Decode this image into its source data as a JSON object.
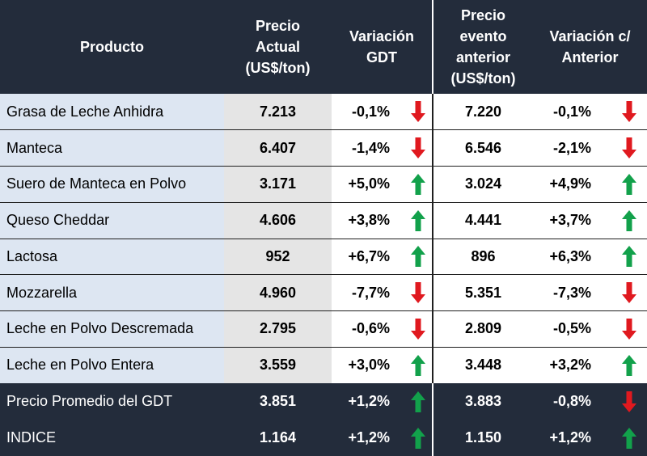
{
  "colors": {
    "header_bg": "#232c3b",
    "product_bg": "#dde6f2",
    "price_bg": "#e5e5e5",
    "up": "#12a14b",
    "down": "#e0191f"
  },
  "headers": {
    "producto": "Producto",
    "precio_actual": [
      "Precio",
      "Actual",
      "(US$/ton)"
    ],
    "variacion_gdt": [
      "Variación",
      "GDT"
    ],
    "precio_anterior": [
      "Precio",
      "evento",
      "anterior",
      "(US$/ton)"
    ],
    "variacion_anterior": [
      "Variación c/",
      "Anterior"
    ]
  },
  "rows": [
    {
      "producto": "Grasa de Leche Anhidra",
      "precio_actual": "7.213",
      "var_gdt": "-0,1%",
      "var_gdt_dir": "down",
      "precio_anterior": "7.220",
      "var_ant": "-0,1%",
      "var_ant_dir": "down"
    },
    {
      "producto": "Manteca",
      "precio_actual": "6.407",
      "var_gdt": "-1,4%",
      "var_gdt_dir": "down",
      "precio_anterior": "6.546",
      "var_ant": "-2,1%",
      "var_ant_dir": "down"
    },
    {
      "producto": "Suero de Manteca en Polvo",
      "precio_actual": "3.171",
      "var_gdt": "+5,0%",
      "var_gdt_dir": "up",
      "precio_anterior": "3.024",
      "var_ant": "+4,9%",
      "var_ant_dir": "up"
    },
    {
      "producto": "Queso Cheddar",
      "precio_actual": "4.606",
      "var_gdt": "+3,8%",
      "var_gdt_dir": "up",
      "precio_anterior": "4.441",
      "var_ant": "+3,7%",
      "var_ant_dir": "up"
    },
    {
      "producto": "Lactosa",
      "precio_actual": "952",
      "var_gdt": "+6,7%",
      "var_gdt_dir": "up",
      "precio_anterior": "896",
      "var_ant": "+6,3%",
      "var_ant_dir": "up"
    },
    {
      "producto": "Mozzarella",
      "precio_actual": "4.960",
      "var_gdt": "-7,7%",
      "var_gdt_dir": "down",
      "precio_anterior": "5.351",
      "var_ant": "-7,3%",
      "var_ant_dir": "down"
    },
    {
      "producto": "Leche en Polvo Descremada",
      "precio_actual": "2.795",
      "var_gdt": "-0,6%",
      "var_gdt_dir": "down",
      "precio_anterior": "2.809",
      "var_ant": "-0,5%",
      "var_ant_dir": "down"
    },
    {
      "producto": "Leche en Polvo Entera",
      "precio_actual": "3.559",
      "var_gdt": "+3,0%",
      "var_gdt_dir": "up",
      "precio_anterior": "3.448",
      "var_ant": "+3,2%",
      "var_ant_dir": "up"
    }
  ],
  "footer": [
    {
      "producto": "Precio Promedio del GDT",
      "precio_actual": "3.851",
      "var_gdt": "+1,2%",
      "var_gdt_dir": "up",
      "precio_anterior": "3.883",
      "var_ant": "-0,8%",
      "var_ant_dir": "down"
    },
    {
      "producto": "INDICE",
      "precio_actual": "1.164",
      "var_gdt": "+1,2%",
      "var_gdt_dir": "up",
      "precio_anterior": "1.150",
      "var_ant": "+1,2%",
      "var_ant_dir": "up"
    }
  ]
}
